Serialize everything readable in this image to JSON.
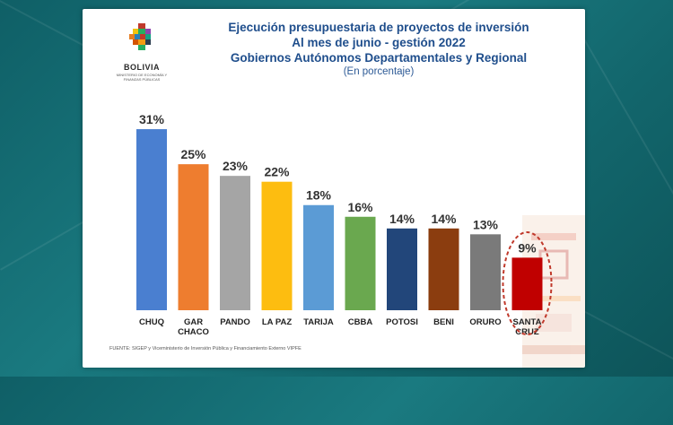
{
  "header": {
    "title_line1": "Ejecución presupuestaria de proyectos de inversión",
    "title_line2": "Al mes de junio - gestión 2022",
    "title_line3": "Gobiernos Autónomos Departamentales y Regional",
    "subtitle": "(En porcentaje)"
  },
  "logo": {
    "name": "BOLIVIA",
    "subtitle": "MINISTERIO DE ECONOMÍA Y FINANZAS PÚBLICAS"
  },
  "source": "FUENTE: SIGEP y Viceministerio de Inversión Pública y Financiamiento Externo VIPFE",
  "colors": {
    "title": "#1f4e8c",
    "highlight_circle": "#c0392b",
    "bars": [
      "#4a7fd0",
      "#ee7d2f",
      "#a5a5a5",
      "#fdbd10",
      "#5b9bd5",
      "#6aa84f",
      "#22467a",
      "#8b3d0f",
      "#7a7a7a",
      "#c00000"
    ]
  },
  "chart_data": {
    "type": "bar",
    "title": "Ejecución presupuestaria de proyectos de inversión",
    "categories": [
      [
        "CHUQ"
      ],
      [
        "GAR",
        "CHACO"
      ],
      [
        "PANDO"
      ],
      [
        "LA PAZ"
      ],
      [
        "TARIJA"
      ],
      [
        "CBBA"
      ],
      [
        "POTOSI"
      ],
      [
        "BENI"
      ],
      [
        "ORURO"
      ],
      [
        "SANTA",
        "CRUZ"
      ]
    ],
    "values": [
      31,
      25,
      23,
      22,
      18,
      16,
      14,
      14,
      13,
      9
    ],
    "value_suffix": "%",
    "ylim": [
      0,
      35
    ],
    "highlighted_category_index": 9,
    "xlabel": "",
    "ylabel": ""
  }
}
